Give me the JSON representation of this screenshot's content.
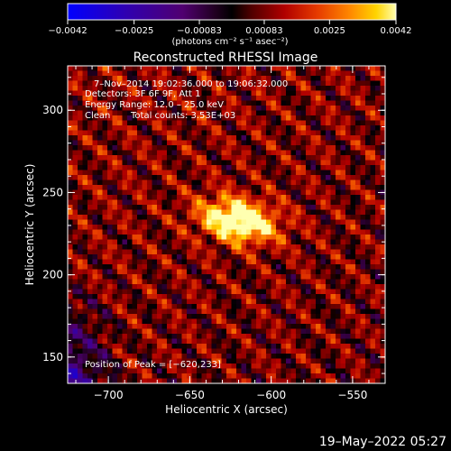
{
  "chart_data": {
    "type": "heatmap",
    "title": "Reconstructed RHESSI Image",
    "xlabel": "Heliocentric X (arcsec)",
    "ylabel": "Heliocentric Y (arcsec)",
    "xlim": [
      -725,
      -530
    ],
    "ylim": [
      134,
      327
    ],
    "x_ticks": [
      -700,
      -650,
      -600,
      -550
    ],
    "y_ticks": [
      150,
      200,
      250,
      300
    ],
    "x_tick_labels": [
      "−700",
      "−650",
      "−600",
      "−550"
    ],
    "y_tick_labels": [
      "150",
      "200",
      "250",
      "300"
    ],
    "colorbar": {
      "min": -0.0042,
      "max": 0.0042,
      "ticks": [
        -0.0042,
        -0.0025,
        -0.00083,
        0.00083,
        0.0025,
        0.0042
      ],
      "tick_labels": [
        "−0.0042",
        "−0.0025",
        "−0.00083",
        "0.00083",
        "0.0025",
        "0.0042"
      ],
      "unit_label": "(photons cm⁻² s⁻¹ asec⁻²)"
    },
    "annotations": {
      "time_range": "7–Nov–2014 19:02:36.000 to 19:06:32.000",
      "detectors": "Detectors: 3F 6F 9F, Att 1",
      "energy": "Energy Range: 12.0 – 25.0 keV",
      "method": "Clean",
      "counts": "Total counts: 3.53E+03",
      "peak": "Position of Peak = [−620,233]"
    },
    "peak": {
      "x": -620,
      "y": 233
    },
    "colors": [
      "#0000ff",
      "#2a00c0",
      "#46007a",
      "#000000",
      "#4a0000",
      "#a00000",
      "#e03000",
      "#ff7a00",
      "#ffd000",
      "#ffffa0"
    ]
  },
  "footer": {
    "timestamp": "19–May–2022 05:27"
  }
}
